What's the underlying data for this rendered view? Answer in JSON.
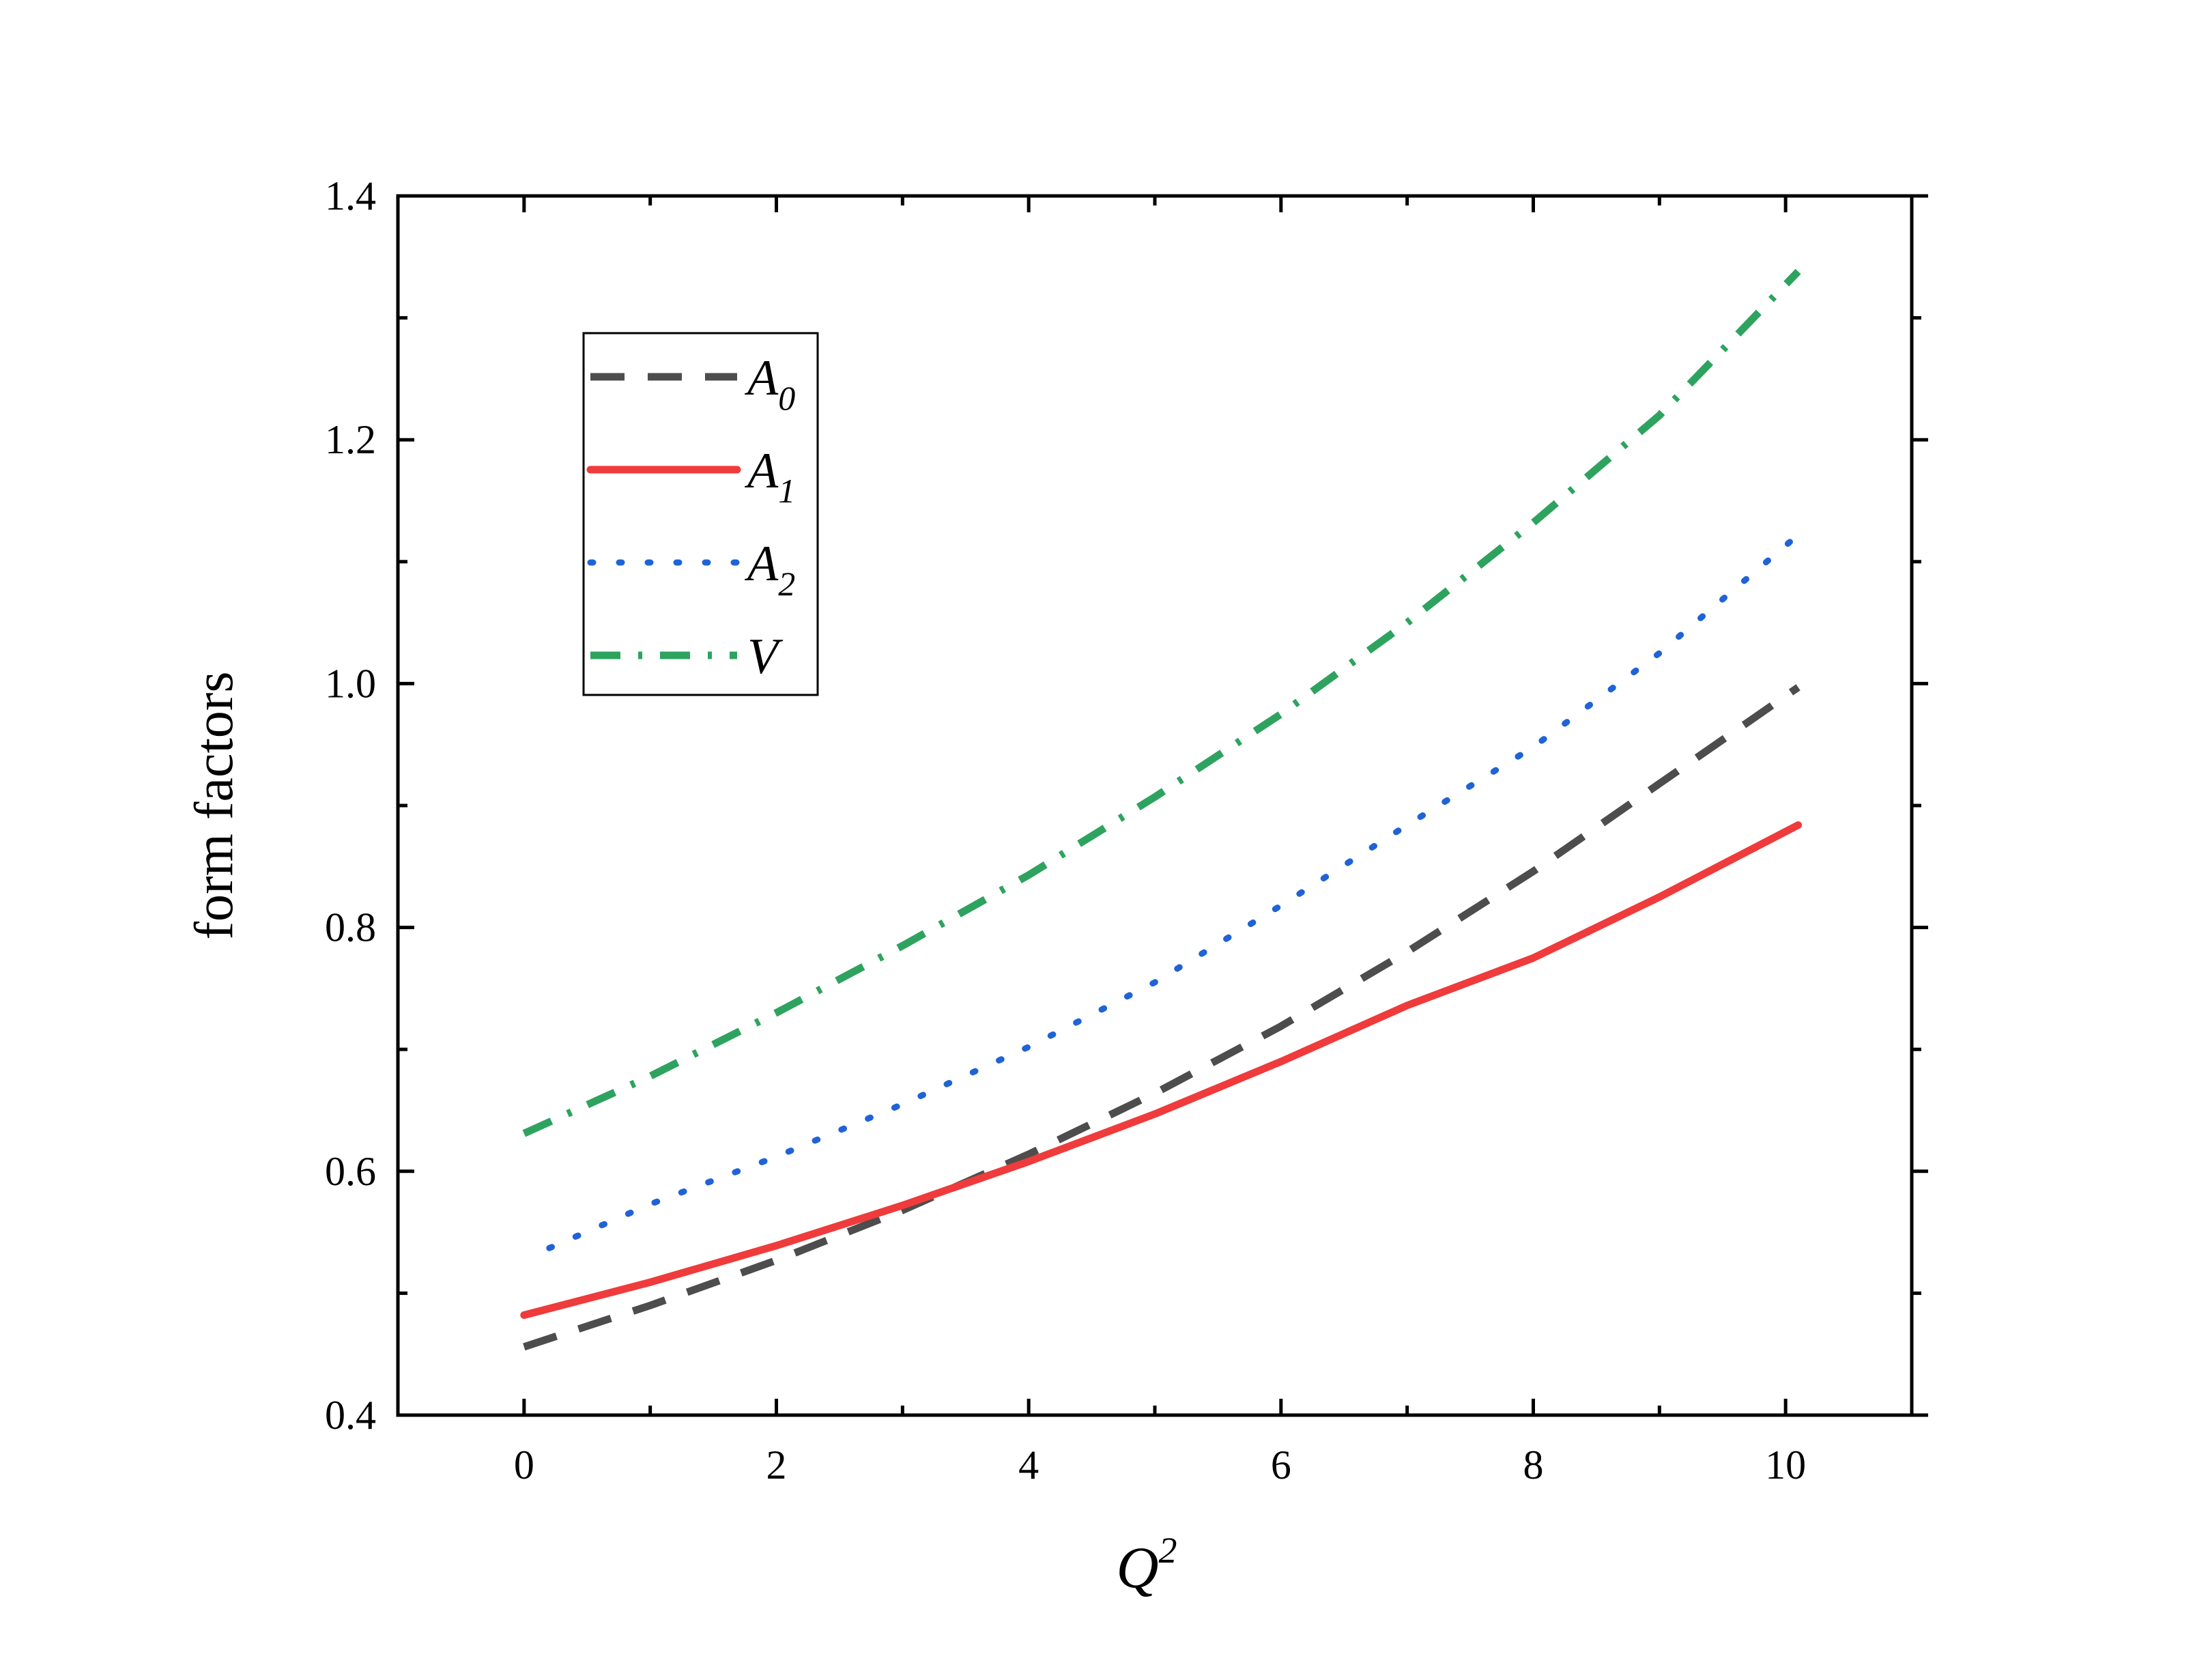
{
  "chart_data": {
    "type": "line",
    "xlabel": "Q",
    "xlabel_superscript": "2",
    "ylabel": "form factors",
    "xlim": [
      -1,
      11
    ],
    "ylim": [
      0.4,
      1.4
    ],
    "x_ticks": [
      "0",
      "2",
      "4",
      "6",
      "8",
      "10"
    ],
    "x_tick_values": [
      0,
      2,
      4,
      6,
      8,
      10
    ],
    "x_minor_ticks": [
      -1,
      1,
      3,
      5,
      7,
      9,
      11
    ],
    "y_ticks": [
      "0.4",
      "0.6",
      "0.8",
      "1.0",
      "1.2",
      "1.4"
    ],
    "y_tick_values": [
      0.4,
      0.6,
      0.8,
      1.0,
      1.2,
      1.4
    ],
    "y_minor_ticks": [
      0.5,
      0.7,
      0.9,
      1.1,
      1.3
    ],
    "grid": false,
    "legend_position": "top-left",
    "series": [
      {
        "name": "A0",
        "base": "A",
        "sub": "0",
        "color": "#4d4d4d",
        "style": "dashed",
        "x": [
          0,
          1,
          2,
          3,
          4,
          5,
          6,
          7,
          8,
          9,
          10.1
        ],
        "y": [
          0.456,
          0.49,
          0.527,
          0.568,
          0.614,
          0.664,
          0.719,
          0.78,
          0.846,
          0.918,
          0.997
        ]
      },
      {
        "name": "A1",
        "base": "A",
        "sub": "1",
        "color": "#ef3b3b",
        "style": "solid",
        "x": [
          0,
          1,
          2,
          3,
          4,
          5,
          6,
          7,
          8,
          9,
          10.1
        ],
        "y": [
          0.482,
          0.509,
          0.539,
          0.572,
          0.608,
          0.647,
          0.69,
          0.736,
          0.775,
          0.825,
          0.884
        ]
      },
      {
        "name": "A2",
        "base": "A",
        "sub": "2",
        "color": "#1f63d6",
        "style": "dotted",
        "x": [
          0.2,
          1,
          2,
          3,
          4,
          5,
          6,
          7,
          8,
          9,
          10.1
        ],
        "y": [
          0.537,
          0.573,
          0.612,
          0.655,
          0.702,
          0.755,
          0.818,
          0.884,
          0.948,
          1.025,
          1.122
        ]
      },
      {
        "name": "V",
        "base": "V",
        "sub": "",
        "color": "#2ea35f",
        "style": "dashdot",
        "x": [
          0,
          1,
          2,
          3,
          4,
          5,
          6,
          7,
          8,
          9,
          10.1
        ],
        "y": [
          0.631,
          0.678,
          0.73,
          0.785,
          0.843,
          0.907,
          0.975,
          1.05,
          1.132,
          1.22,
          1.338
        ]
      }
    ]
  }
}
